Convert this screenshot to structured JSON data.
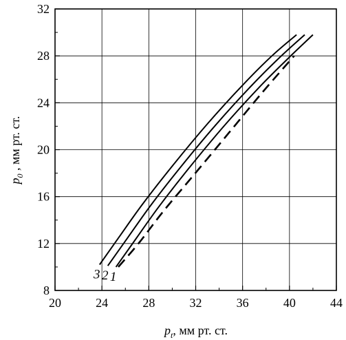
{
  "chart_data": {
    "type": "line",
    "xlabel": {
      "symbol": "p",
      "subscript": "t",
      "unit": ", мм рт. ст."
    },
    "ylabel": {
      "symbol": "p",
      "subscript": "0",
      "unit": " , мм рт. ст."
    },
    "xlim": [
      20,
      44
    ],
    "ylim": [
      8,
      32
    ],
    "xticks": [
      "20",
      "24",
      "28",
      "32",
      "36",
      "40",
      "44"
    ],
    "yticks": [
      "8",
      "12",
      "16",
      "20",
      "24",
      "28",
      "32"
    ],
    "grid": true,
    "series": [
      {
        "name": "3",
        "style": "solid",
        "x": [
          23.8,
          25.5,
          27.5,
          30.0,
          33.0,
          36.0,
          38.5,
          40.6
        ],
        "y": [
          10.2,
          12.6,
          15.4,
          18.6,
          22.2,
          25.5,
          28.0,
          29.8
        ]
      },
      {
        "name": "2",
        "style": "solid",
        "x": [
          24.5,
          26.2,
          28.2,
          30.7,
          33.7,
          36.7,
          39.2,
          41.3
        ],
        "y": [
          10.1,
          12.5,
          15.3,
          18.5,
          22.1,
          25.4,
          27.9,
          29.8
        ]
      },
      {
        "name": "1",
        "style": "solid",
        "x": [
          25.2,
          26.9,
          28.9,
          31.4,
          34.4,
          37.4,
          39.9,
          42.0
        ],
        "y": [
          10.0,
          12.4,
          15.2,
          18.4,
          22.0,
          25.3,
          27.8,
          29.8
        ]
      },
      {
        "name": "",
        "style": "dashed",
        "x": [
          25.4,
          27.2,
          29.2,
          31.8,
          34.8,
          37.7,
          40.4
        ],
        "y": [
          10.0,
          12.1,
          14.7,
          17.8,
          21.4,
          24.9,
          28.0
        ]
      }
    ]
  }
}
